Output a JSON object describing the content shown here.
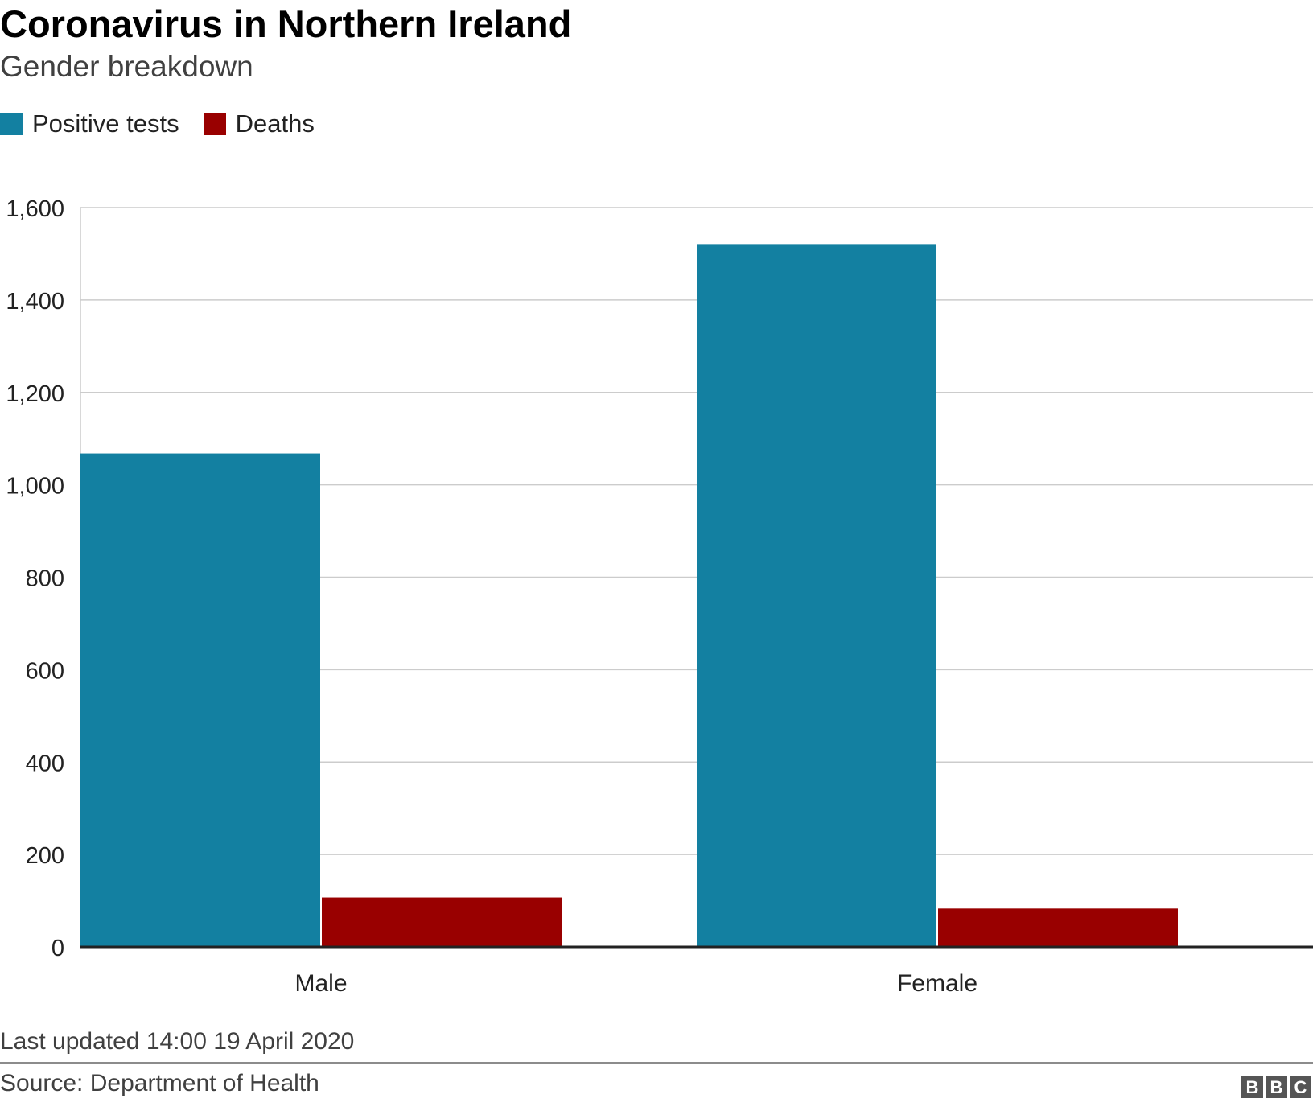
{
  "chart_data": {
    "type": "bar",
    "title": "Coronavirus in Northern Ireland",
    "subtitle": "Gender breakdown",
    "categories": [
      "Male",
      "Female"
    ],
    "series": [
      {
        "name": "Positive tests",
        "color": "#1380a1",
        "values": [
          1068,
          1521
        ]
      },
      {
        "name": "Deaths",
        "color": "#990000",
        "values": [
          107,
          83
        ]
      }
    ],
    "ylim": [
      0,
      1600
    ],
    "yticks": [
      0,
      200,
      400,
      600,
      800,
      1000,
      1200,
      1400,
      1600
    ],
    "ytick_labels": [
      "0",
      "200",
      "400",
      "600",
      "800",
      "1,000",
      "1,200",
      "1,400",
      "1,600"
    ],
    "grid": true,
    "legend_position": "top-left"
  },
  "footer": {
    "updated": "Last updated 14:00 19 April 2020",
    "source": "Source: Department of Health",
    "logo_letters": [
      "B",
      "B",
      "C"
    ]
  }
}
